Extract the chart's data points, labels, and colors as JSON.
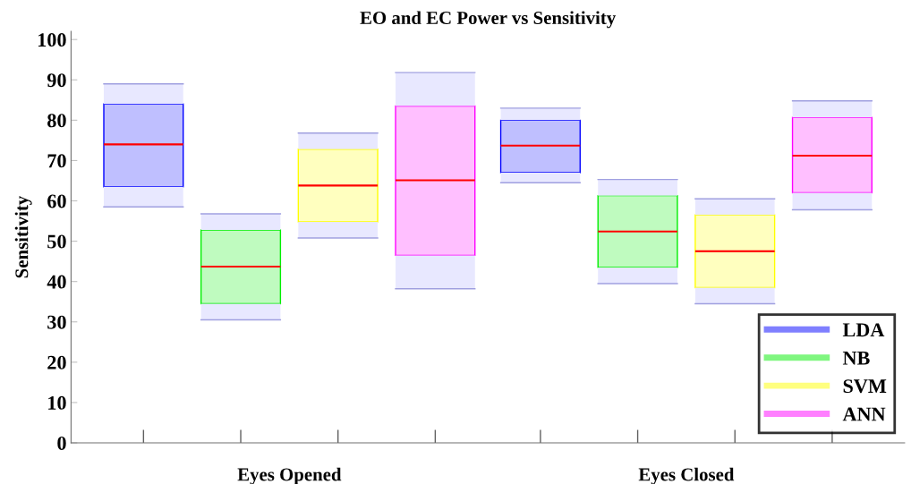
{
  "chart_data": {
    "type": "box",
    "title": "EO and EC Power vs Sensitivity",
    "ylabel": "Sensitivity",
    "categories": [
      "Eyes Opened",
      "Eyes Closed"
    ],
    "series": [
      {
        "name": "LDA",
        "color": "#0000ff",
        "boxes": [
          {
            "low": 58.5,
            "q1": 63.5,
            "median": 74,
            "q3": 84,
            "high": 89
          },
          {
            "low": 64.5,
            "q1": 67,
            "median": 73.7,
            "q3": 80,
            "high": 83
          }
        ]
      },
      {
        "name": "NB",
        "color": "#00ee00",
        "boxes": [
          {
            "low": 30.5,
            "q1": 34.5,
            "median": 43.7,
            "q3": 52.8,
            "high": 56.8
          },
          {
            "low": 39.5,
            "q1": 43.5,
            "median": 52.4,
            "q3": 61.3,
            "high": 65.3
          }
        ]
      },
      {
        "name": "SVM",
        "color": "#ffff00",
        "boxes": [
          {
            "low": 50.8,
            "q1": 54.8,
            "median": 63.8,
            "q3": 72.8,
            "high": 76.8
          },
          {
            "low": 34.5,
            "q1": 38.5,
            "median": 47.5,
            "q3": 56.5,
            "high": 60.5
          }
        ]
      },
      {
        "name": "ANN",
        "color": "#ff00ff",
        "boxes": [
          {
            "low": 38.2,
            "q1": 46.5,
            "median": 65.1,
            "q3": 83.5,
            "high": 91.8
          },
          {
            "low": 57.8,
            "q1": 62,
            "median": 71.2,
            "q3": 80.7,
            "high": 84.8
          }
        ]
      }
    ],
    "ylim": [
      0,
      102
    ],
    "yticks": [
      0,
      10,
      20,
      30,
      40,
      50,
      60,
      70,
      80,
      90,
      100
    ],
    "grid": false,
    "legend": "lower right"
  }
}
